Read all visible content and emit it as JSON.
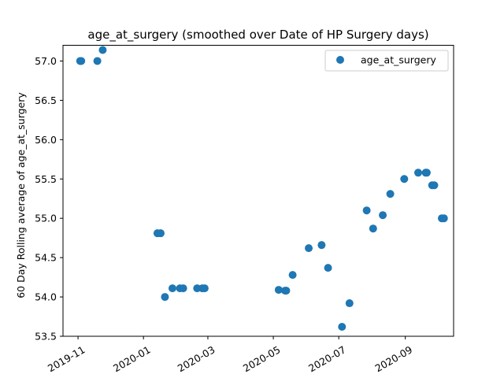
{
  "chart_data": {
    "type": "scatter",
    "title": "age_at_surgery (smoothed over Date of HP Surgery days)",
    "xlabel": "",
    "ylabel": "60 Day Rolling average of age_at_surgery",
    "xlim": [
      "2019-10-18",
      "2020-10-16"
    ],
    "ylim": [
      53.5,
      57.2
    ],
    "x_ticks": [
      "2019-11-01",
      "2020-01-01",
      "2020-03-01",
      "2020-05-01",
      "2020-07-01",
      "2020-09-01"
    ],
    "x_tick_labels": [
      "2019-11",
      "2020-01",
      "2020-03",
      "2020-05",
      "2020-07",
      "2020-09"
    ],
    "y_ticks": [
      53.5,
      54.0,
      54.5,
      55.0,
      55.5,
      56.0,
      56.5,
      57.0
    ],
    "y_tick_labels": [
      "53.5",
      "54.0",
      "54.5",
      "55.0",
      "55.5",
      "56.0",
      "56.5",
      "57.0"
    ],
    "grid": false,
    "legend_position": "top-right",
    "series": [
      {
        "name": "age_at_surgery",
        "color": "#1f77b4",
        "marker": "circle",
        "points": [
          {
            "x": "2019-11-03",
            "y": 57.0
          },
          {
            "x": "2019-11-04",
            "y": 57.0
          },
          {
            "x": "2019-11-19",
            "y": 57.0
          },
          {
            "x": "2019-11-24",
            "y": 57.14
          },
          {
            "x": "2020-01-14",
            "y": 54.81
          },
          {
            "x": "2020-01-17",
            "y": 54.81
          },
          {
            "x": "2020-01-21",
            "y": 54.0
          },
          {
            "x": "2020-01-28",
            "y": 54.11
          },
          {
            "x": "2020-02-04",
            "y": 54.11
          },
          {
            "x": "2020-02-07",
            "y": 54.11
          },
          {
            "x": "2020-02-20",
            "y": 54.11
          },
          {
            "x": "2020-02-25",
            "y": 54.11
          },
          {
            "x": "2020-02-27",
            "y": 54.11
          },
          {
            "x": "2020-05-06",
            "y": 54.09
          },
          {
            "x": "2020-05-12",
            "y": 54.08
          },
          {
            "x": "2020-05-13",
            "y": 54.08
          },
          {
            "x": "2020-05-19",
            "y": 54.28
          },
          {
            "x": "2020-06-03",
            "y": 54.62
          },
          {
            "x": "2020-06-15",
            "y": 54.66
          },
          {
            "x": "2020-06-21",
            "y": 54.37
          },
          {
            "x": "2020-07-04",
            "y": 53.62
          },
          {
            "x": "2020-07-11",
            "y": 53.92
          },
          {
            "x": "2020-07-27",
            "y": 55.1
          },
          {
            "x": "2020-08-02",
            "y": 54.87
          },
          {
            "x": "2020-08-11",
            "y": 55.04
          },
          {
            "x": "2020-08-18",
            "y": 55.31
          },
          {
            "x": "2020-08-31",
            "y": 55.5
          },
          {
            "x": "2020-09-13",
            "y": 55.58
          },
          {
            "x": "2020-09-20",
            "y": 55.58
          },
          {
            "x": "2020-09-21",
            "y": 55.58
          },
          {
            "x": "2020-09-26",
            "y": 55.42
          },
          {
            "x": "2020-09-28",
            "y": 55.42
          },
          {
            "x": "2020-10-05",
            "y": 55.0
          },
          {
            "x": "2020-10-07",
            "y": 55.0
          }
        ]
      }
    ]
  }
}
